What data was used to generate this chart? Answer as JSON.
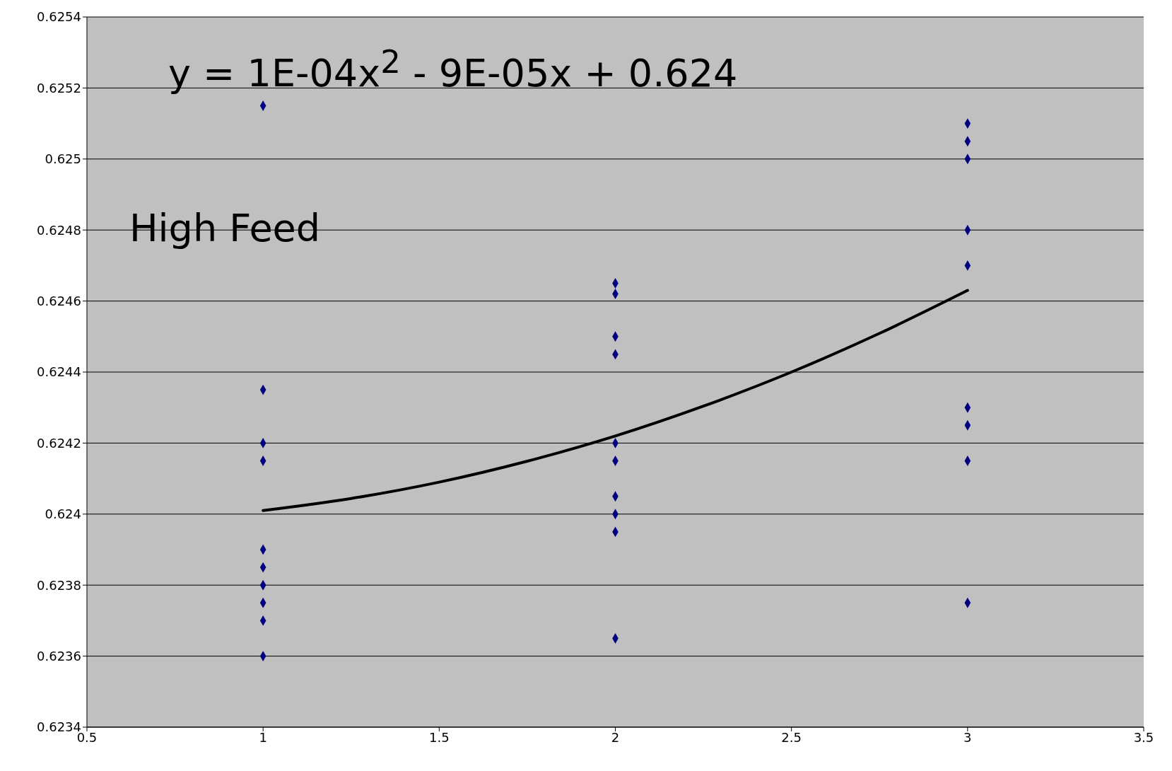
{
  "chart_data": {
    "type": "scatter",
    "series": [
      {
        "color": "#000080",
        "marker": "diamond",
        "x": [
          1,
          1,
          1,
          1,
          1,
          1,
          1,
          1,
          1,
          1,
          2,
          2,
          2,
          2,
          2,
          2,
          2,
          2,
          2,
          2,
          3,
          3,
          3,
          3,
          3,
          3,
          3,
          3,
          3
        ],
        "values": [
          0.62515,
          0.62435,
          0.6242,
          0.62415,
          0.6239,
          0.62385,
          0.6238,
          0.62375,
          0.6237,
          0.6236,
          0.62465,
          0.62462,
          0.6245,
          0.62445,
          0.6242,
          0.62415,
          0.62405,
          0.624,
          0.62395,
          0.62365,
          0.6251,
          0.62505,
          0.625,
          0.6248,
          0.6247,
          0.6243,
          0.62425,
          0.62415,
          0.62375
        ]
      },
      {
        "type": "line",
        "color": "#000000",
        "marker": "none",
        "x": [
          1,
          1.25,
          1.5,
          1.75,
          2,
          2.25,
          2.5,
          2.75,
          3
        ],
        "values": [
          0.62401,
          0.624044,
          0.62409,
          0.624149,
          0.62422,
          0.624304,
          0.6244,
          0.624509,
          0.62463
        ]
      }
    ],
    "xlim": [
      0.5,
      3.5
    ],
    "xticks": [
      0.5,
      1,
      1.5,
      2,
      2.5,
      3,
      3.5
    ],
    "ylim": [
      0.6234,
      0.6254
    ],
    "yticks": [
      0.6234,
      0.6236,
      0.6238,
      0.624,
      0.6242,
      0.6244,
      0.6246,
      0.6248,
      0.625,
      0.6252,
      0.6254
    ],
    "grid": "y",
    "annotations": [
      "y = 1E-04x$^{2}$ - 9E-05x + 0.624",
      "High Feed"
    ]
  }
}
